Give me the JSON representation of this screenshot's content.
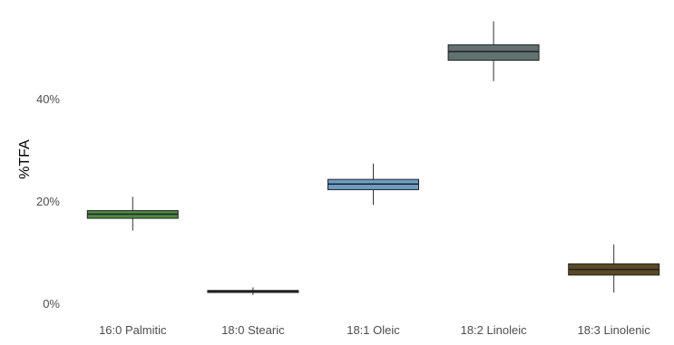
{
  "chart_data": {
    "type": "boxplot",
    "ylabel": "%TFA",
    "xlabel": "",
    "ylim": [
      0,
      56
    ],
    "y_ticks": [
      0,
      20,
      40
    ],
    "y_tick_labels": [
      "0%",
      "20%",
      "40%"
    ],
    "grid": false,
    "legend": "none",
    "categories": [
      "16:0 Palmitic",
      "18:0 Stearic",
      "18:1 Oleic",
      "18:2 Linoleic",
      "18:3 Linolenic"
    ],
    "boxes": [
      {
        "category": "16:0 Palmitic",
        "whisker_low": 14.4,
        "q1": 16.8,
        "median": 17.6,
        "q3": 18.3,
        "whisker_high": 21.0,
        "color": "#4d8a43"
      },
      {
        "category": "18:0 Stearic",
        "whisker_low": 1.8,
        "q1": 2.3,
        "median": 2.5,
        "q3": 2.7,
        "whisker_high": 3.3,
        "color": "#2b2b2b"
      },
      {
        "category": "18:1 Oleic",
        "whisker_low": 19.4,
        "q1": 22.4,
        "median": 23.5,
        "q3": 24.4,
        "whisker_high": 27.5,
        "color": "#6d9dc6"
      },
      {
        "category": "18:2 Linoleic",
        "whisker_low": 43.6,
        "q1": 47.7,
        "median": 49.4,
        "q3": 50.7,
        "whisker_high": 55.3,
        "color": "#627272"
      },
      {
        "category": "18:3 Linolenic",
        "whisker_low": 2.3,
        "q1": 5.7,
        "median": 6.8,
        "q3": 7.9,
        "whisker_high": 11.7,
        "color": "#5a4a25"
      }
    ]
  }
}
